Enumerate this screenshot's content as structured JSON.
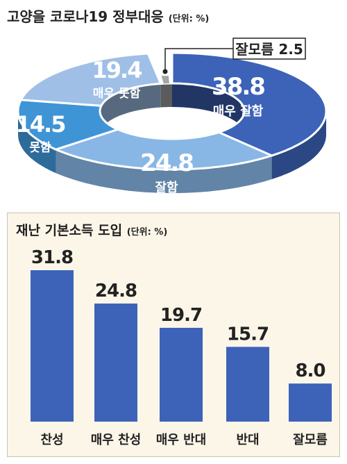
{
  "chart_data": [
    {
      "type": "pie",
      "title": "고양을 코로나19 정부대응",
      "unit_note": "(단위: %)",
      "slices": [
        {
          "label": "매우 잘함",
          "value": 38.8,
          "color": "#3c63b8"
        },
        {
          "label": "잘함",
          "value": 24.8,
          "color": "#88b7e6"
        },
        {
          "label": "못함",
          "value": 14.5,
          "color": "#3f94d6"
        },
        {
          "label": "매우 못함",
          "value": 19.4,
          "color": "#9fbfe6"
        },
        {
          "label": "잘모름",
          "value": 2.5,
          "color": "#a5a5a5"
        }
      ]
    },
    {
      "type": "bar",
      "title": "재난 기본소득 도입",
      "unit_note": "(단위: %)",
      "categories": [
        "찬성",
        "매우 찬성",
        "매우 반대",
        "반대",
        "잘모름"
      ],
      "values": [
        31.8,
        24.8,
        19.7,
        15.7,
        8.0
      ],
      "value_labels": [
        "31.8",
        "24.8",
        "19.7",
        "15.7",
        "8.0"
      ],
      "ylim": [
        0,
        31.8
      ],
      "bar_color": "#3c63b8"
    }
  ]
}
